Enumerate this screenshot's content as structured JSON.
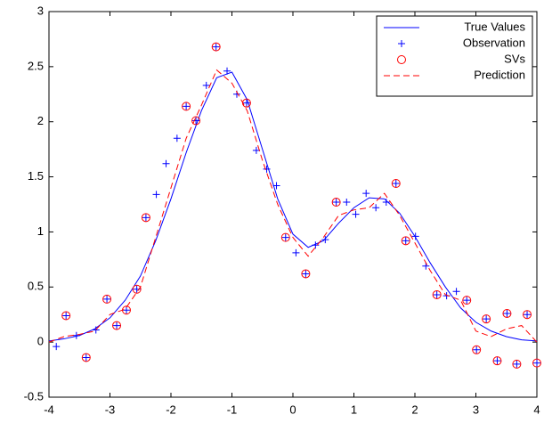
{
  "chart_data": {
    "type": "line",
    "xlim": [
      -4,
      4
    ],
    "ylim": [
      -0.5,
      3
    ],
    "xticks": [
      -4,
      -3,
      -2,
      -1,
      0,
      1,
      2,
      3,
      4
    ],
    "yticks": [
      -0.5,
      0,
      0.5,
      1,
      1.5,
      2,
      2.5,
      3
    ],
    "grid": false,
    "legend": "top-right",
    "series": [
      {
        "name": "True Values",
        "color": "#0000ff",
        "style": "solid",
        "x": [
          -4,
          -3.75,
          -3.5,
          -3.25,
          -3,
          -2.75,
          -2.5,
          -2.25,
          -2,
          -1.75,
          -1.5,
          -1.25,
          -1,
          -0.75,
          -0.5,
          -0.25,
          0,
          0.25,
          0.5,
          0.75,
          1,
          1.25,
          1.5,
          1.75,
          2,
          2.25,
          2.5,
          2.75,
          3,
          3.25,
          3.5,
          3.75,
          4
        ],
        "values": [
          0.01,
          0.03,
          0.06,
          0.12,
          0.22,
          0.38,
          0.6,
          0.92,
          1.3,
          1.72,
          2.1,
          2.4,
          2.45,
          2.2,
          1.75,
          1.3,
          0.98,
          0.86,
          0.92,
          1.08,
          1.22,
          1.31,
          1.3,
          1.17,
          0.96,
          0.72,
          0.5,
          0.31,
          0.18,
          0.1,
          0.05,
          0.02,
          0.01
        ]
      },
      {
        "name": "Observation",
        "color": "#0000ff",
        "style": "plus",
        "x": [
          -3.88,
          -3.72,
          -3.55,
          -3.39,
          -3.23,
          -3.05,
          -2.89,
          -2.73,
          -2.56,
          -2.41,
          -2.24,
          -2.08,
          -1.9,
          -1.75,
          -1.59,
          -1.42,
          -1.26,
          -1.08,
          -0.92,
          -0.76,
          -0.6,
          -0.43,
          -0.27,
          -0.12,
          0.05,
          0.21,
          0.37,
          0.53,
          0.71,
          0.88,
          1.03,
          1.2,
          1.36,
          1.53,
          1.69,
          1.85,
          2.01,
          2.18,
          2.36,
          2.52,
          2.68,
          2.85,
          3.01,
          3.17,
          3.35,
          3.51,
          3.67,
          3.84,
          4
        ],
        "values": [
          -0.04,
          0.24,
          0.06,
          -0.14,
          0.11,
          0.39,
          0.15,
          0.29,
          0.48,
          1.13,
          1.34,
          1.62,
          1.85,
          2.14,
          2.01,
          2.33,
          2.68,
          2.46,
          2.25,
          2.17,
          1.74,
          1.57,
          1.42,
          0.95,
          0.81,
          0.62,
          0.88,
          0.93,
          1.27,
          1.27,
          1.16,
          1.35,
          1.22,
          1.27,
          1.44,
          0.92,
          0.96,
          0.69,
          0.43,
          0.42,
          0.46,
          0.38,
          -0.07,
          0.21,
          -0.17,
          0.26,
          -0.2,
          0.25,
          -0.19
        ]
      },
      {
        "name": "SVs",
        "color": "#ff0000",
        "style": "circle",
        "x": [
          -3.72,
          -3.39,
          -3.05,
          -2.89,
          -2.73,
          -2.56,
          -2.41,
          -1.75,
          -1.59,
          -1.26,
          -0.76,
          -0.12,
          0.21,
          0.71,
          1.69,
          1.85,
          2.36,
          2.85,
          3.01,
          3.17,
          3.35,
          3.51,
          3.67,
          3.84,
          4
        ],
        "values": [
          0.24,
          -0.14,
          0.39,
          0.15,
          0.29,
          0.48,
          1.13,
          2.14,
          2.01,
          2.68,
          2.17,
          0.95,
          0.62,
          1.27,
          1.44,
          0.92,
          0.43,
          0.38,
          -0.07,
          0.21,
          -0.17,
          0.26,
          -0.2,
          0.25,
          -0.19
        ]
      },
      {
        "name": "Prediction",
        "color": "#ff0000",
        "style": "dashed",
        "x": [
          -4,
          -3.75,
          -3.5,
          -3.25,
          -3,
          -2.75,
          -2.5,
          -2.25,
          -2,
          -1.75,
          -1.5,
          -1.25,
          -1,
          -0.75,
          -0.5,
          -0.25,
          0,
          0.25,
          0.5,
          0.75,
          1,
          1.25,
          1.5,
          1.75,
          2,
          2.25,
          2.5,
          2.75,
          3,
          3.25,
          3.5,
          3.75,
          4
        ],
        "values": [
          0,
          0.05,
          0.07,
          0.1,
          0.25,
          0.3,
          0.5,
          0.95,
          1.4,
          1.85,
          2.15,
          2.47,
          2.35,
          2.1,
          1.65,
          1.25,
          0.95,
          0.78,
          0.95,
          1.15,
          1.2,
          1.22,
          1.35,
          1.15,
          0.9,
          0.65,
          0.43,
          0.38,
          0.1,
          0.05,
          0.12,
          0.15,
          0
        ]
      }
    ]
  }
}
